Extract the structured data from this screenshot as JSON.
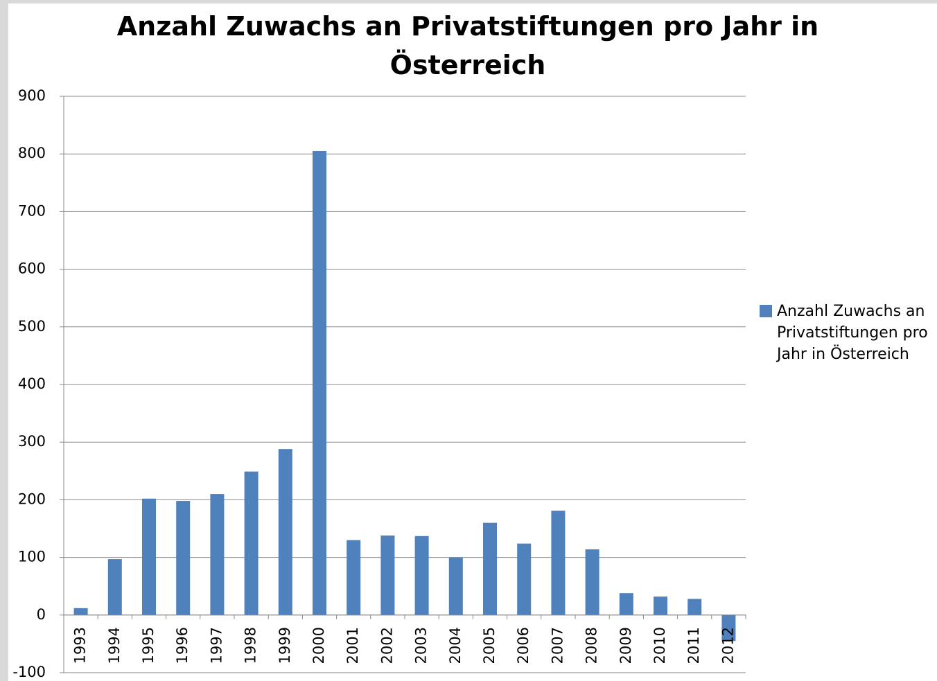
{
  "chart_data": {
    "type": "bar",
    "title": "Anzahl Zuwachs an Privatstiftungen pro Jahr in Österreich",
    "categories": [
      "1993",
      "1994",
      "1995",
      "1996",
      "1997",
      "1998",
      "1999",
      "2000",
      "2001",
      "2002",
      "2003",
      "2004",
      "2005",
      "2006",
      "2007",
      "2008",
      "2009",
      "2010",
      "2011",
      "2012"
    ],
    "series": [
      {
        "name": "Anzahl Zuwachs an Privatstiftungen pro Jahr in Österreich",
        "color": "#4f81bd",
        "values": [
          12,
          97,
          202,
          198,
          210,
          249,
          288,
          805,
          130,
          138,
          137,
          100,
          160,
          124,
          181,
          114,
          38,
          32,
          28,
          -45
        ]
      }
    ],
    "ylim": [
      -100,
      900
    ],
    "yticks": [
      -100,
      0,
      100,
      200,
      300,
      400,
      500,
      600,
      700,
      800,
      900
    ],
    "grid": true,
    "legend": "right"
  }
}
